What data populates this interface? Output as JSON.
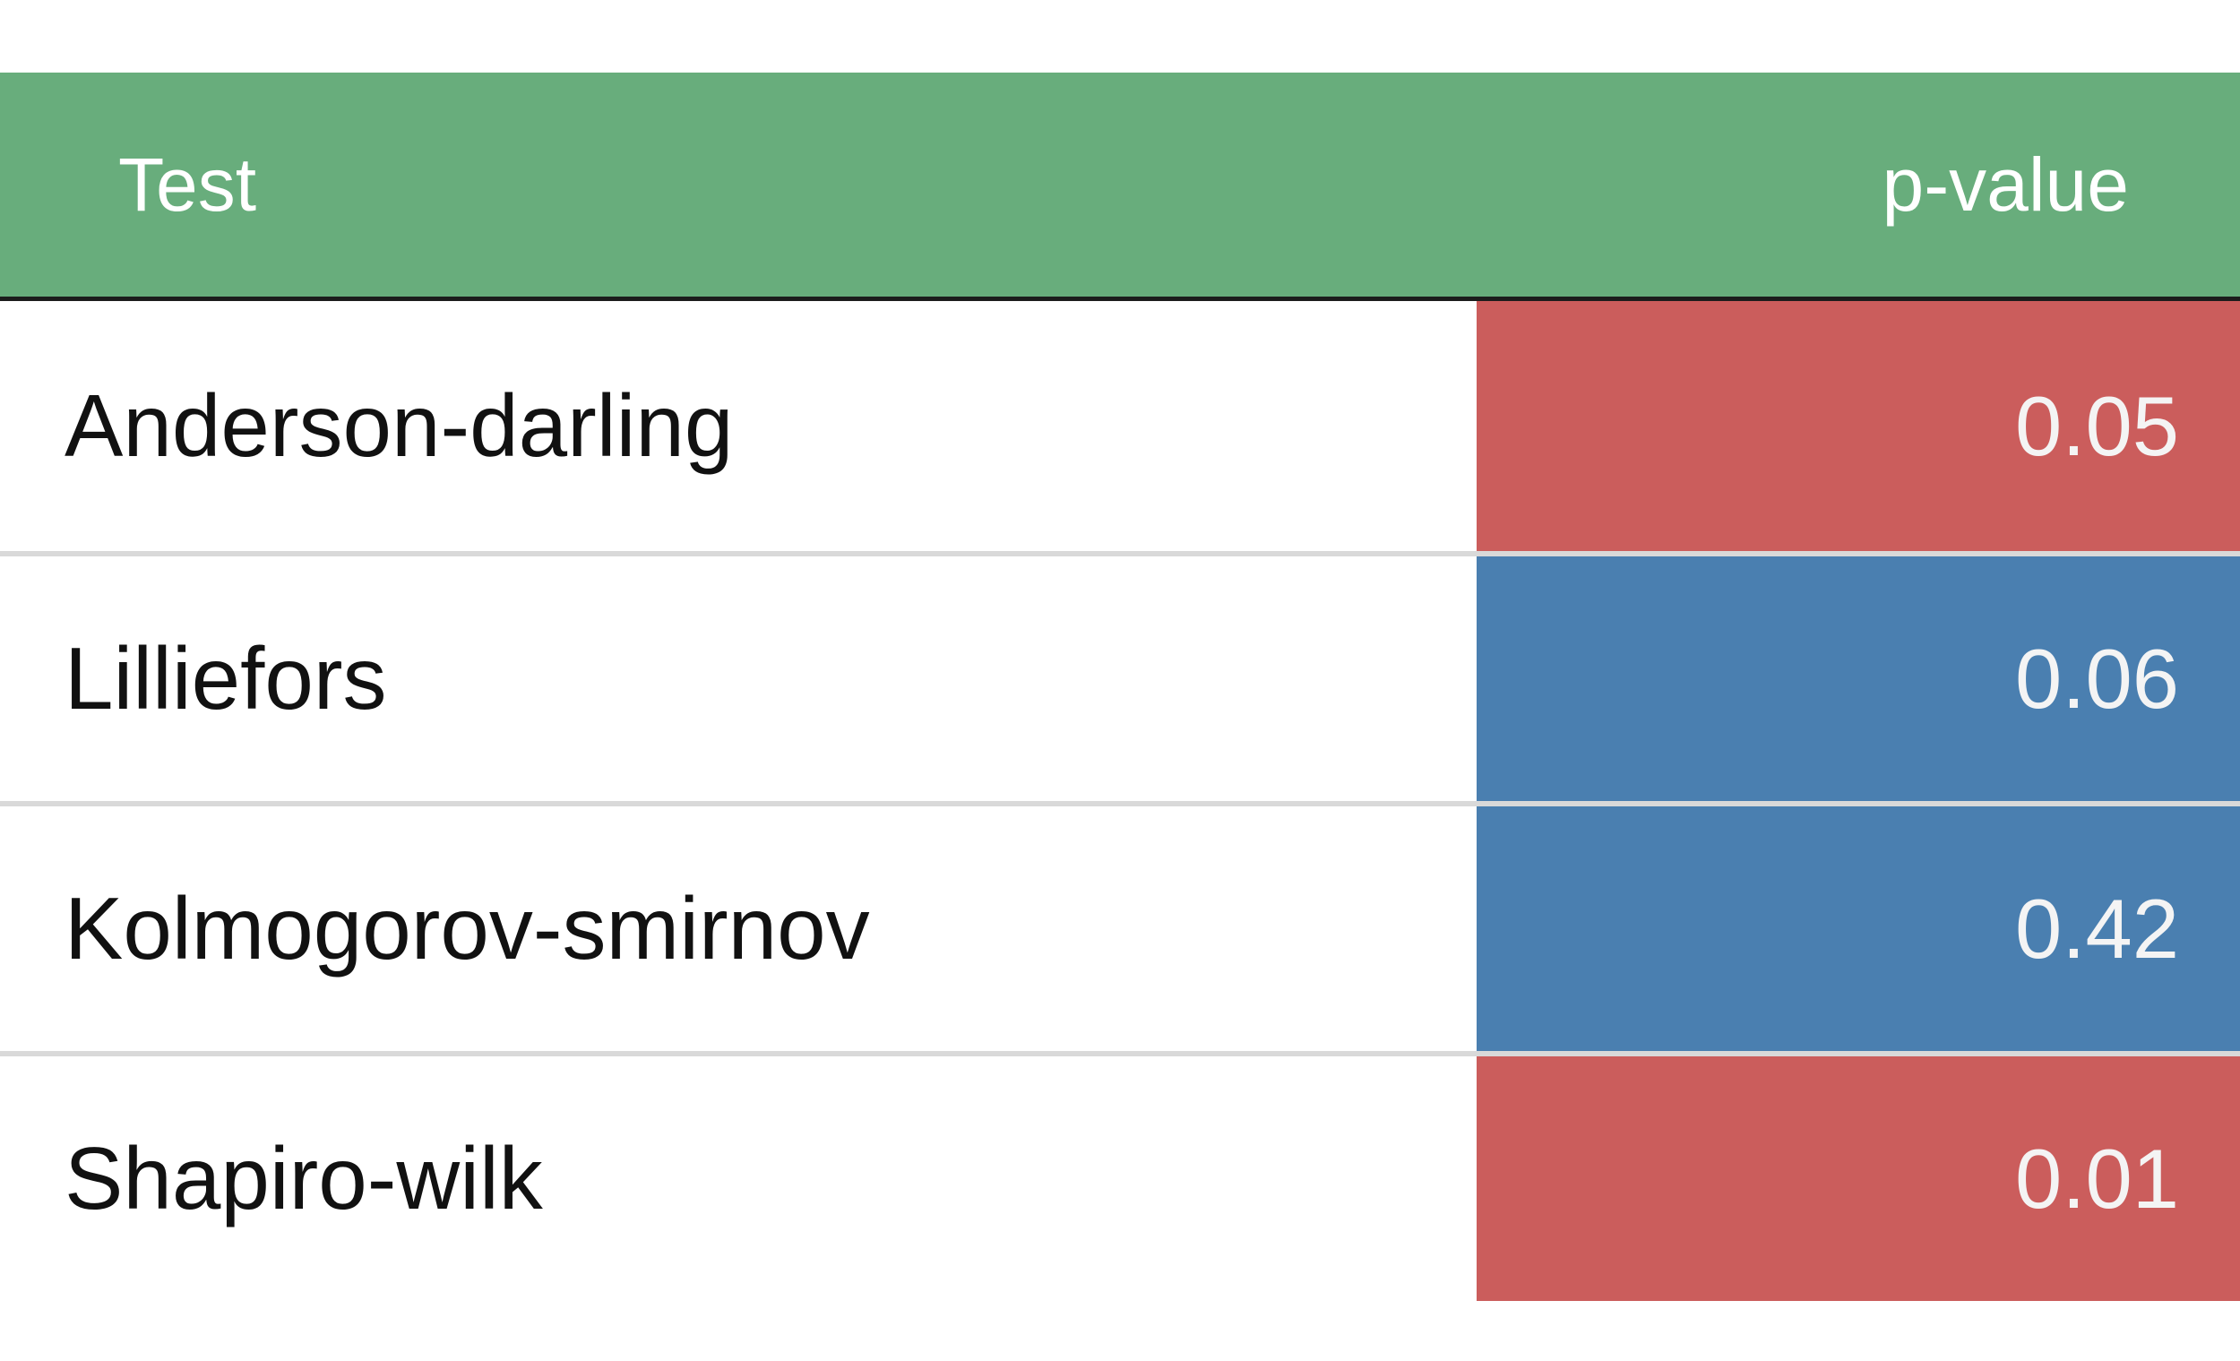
{
  "colors": {
    "header_bg": "#68ad7c",
    "significant": "#cb5d5c",
    "not_significant": "#4a7fb0"
  },
  "table": {
    "headers": {
      "test": "Test",
      "pvalue": "p-value"
    },
    "rows": [
      {
        "test": "Anderson-darling",
        "pvalue": "0.05",
        "status": "significant"
      },
      {
        "test": "Lilliefors",
        "pvalue": "0.06",
        "status": "not_significant"
      },
      {
        "test": "Kolmogorov-smirnov",
        "pvalue": "0.42",
        "status": "not_significant"
      },
      {
        "test": "Shapiro-wilk",
        "pvalue": "0.01",
        "status": "significant"
      }
    ]
  }
}
